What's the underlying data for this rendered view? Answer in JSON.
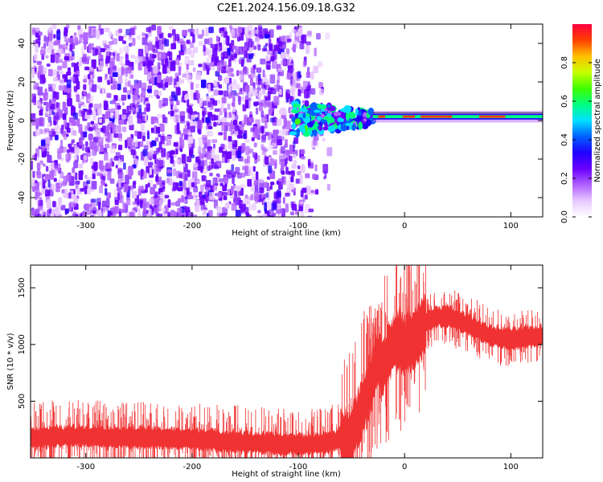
{
  "title": "C2E1.2024.156.09.18.G32",
  "chart_data": [
    {
      "type": "heatmap",
      "xlabel": "Height of straight line (km)",
      "ylabel": "Frequency (Hz)",
      "xlim": [
        -352,
        130
      ],
      "ylim": [
        -50,
        50
      ],
      "xticks": [
        -300,
        -200,
        -100,
        0,
        100
      ],
      "yticks": [
        -40,
        -20,
        0,
        20,
        40
      ],
      "grid": false,
      "colorbar": {
        "label": "Normalized spectral amplitude",
        "ticks": [
          "0.0",
          "0.2",
          "0.4",
          "0.6",
          "0.8"
        ],
        "range": [
          0,
          1
        ],
        "colors": [
          "#ffffff",
          "#e8c8ff",
          "#b060ff",
          "#6a00ff",
          "#2000ff",
          "#0060ff",
          "#00e0ff",
          "#00ff80",
          "#40ff00",
          "#c8ff00",
          "#ffc000",
          "#ff4000",
          "#ff0040"
        ]
      },
      "features": [
        {
          "x_range": [
            -352,
            -70
          ],
          "freq_range": [
            -50,
            50
          ],
          "amplitude": "low noise, 0.1-0.3"
        },
        {
          "x_range": [
            -105,
            -30
          ],
          "freq_center": 1,
          "amplitude": "mixed 0.2-0.6"
        },
        {
          "x_range": [
            -30,
            130
          ],
          "freq_center": 2,
          "amplitude": "narrow band, up to 1.0"
        }
      ]
    },
    {
      "type": "line",
      "xlabel": "Height of straight line (km)",
      "ylabel": "SNR (10 * v/v)",
      "xlim": [
        -352,
        130
      ],
      "ylim": [
        0,
        1700
      ],
      "xticks": [
        -300,
        -200,
        -100,
        0,
        100
      ],
      "yticks": [
        500,
        1000,
        1500
      ],
      "color": "#f03232",
      "series": [
        {
          "x": [
            -352,
            -300,
            -250,
            -200,
            -150,
            -110,
            -75,
            -50,
            -40,
            -30,
            -25,
            -20,
            -15,
            -10,
            -5,
            0,
            10,
            20,
            30,
            40,
            60,
            80,
            100,
            130
          ],
          "y": [
            180,
            200,
            180,
            170,
            140,
            120,
            130,
            200,
            450,
            700,
            900,
            800,
            950,
            1000,
            1050,
            1000,
            1050,
            1200,
            1250,
            1250,
            1180,
            1080,
            1050,
            1080
          ]
        }
      ]
    }
  ]
}
